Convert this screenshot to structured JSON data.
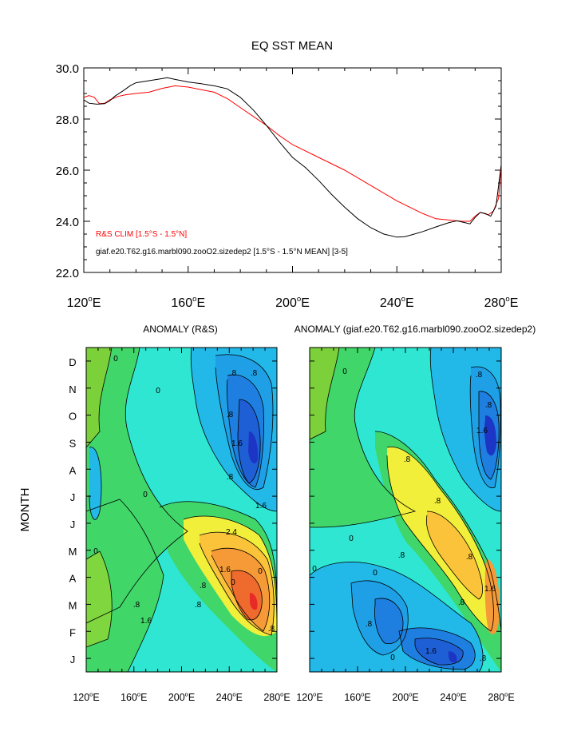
{
  "chart_data": [
    {
      "type": "line",
      "title": "EQ SST MEAN",
      "xlabel": "",
      "ylabel": "",
      "xlim": [
        120,
        280
      ],
      "ylim": [
        22.0,
        30.0
      ],
      "x_ticks": [
        "120°E",
        "160°E",
        "200°E",
        "240°E",
        "280°E"
      ],
      "y_ticks": [
        "22.0",
        "24.0",
        "26.0",
        "28.0",
        "30.0"
      ],
      "legend_placement": "bottom-left",
      "series": [
        {
          "name": "R&S CLIM [1.5°S - 1.5°N]",
          "color": "#ff0000",
          "x": [
            120,
            122,
            124,
            126,
            128,
            130,
            133,
            136,
            140,
            145,
            150,
            155,
            160,
            165,
            170,
            175,
            180,
            185,
            190,
            195,
            200,
            210,
            220,
            230,
            240,
            250,
            255,
            260,
            265,
            268,
            270,
            272,
            275,
            277,
            279,
            280
          ],
          "y": [
            28.85,
            28.92,
            28.85,
            28.6,
            28.62,
            28.75,
            28.88,
            28.95,
            29.0,
            29.05,
            29.2,
            29.3,
            29.25,
            29.15,
            29.05,
            28.8,
            28.45,
            28.1,
            27.75,
            27.35,
            27.0,
            26.5,
            26.0,
            25.4,
            24.8,
            24.3,
            24.1,
            24.05,
            24.0,
            24.0,
            24.2,
            24.35,
            24.25,
            24.4,
            24.9,
            26.2
          ]
        },
        {
          "name": "giaf.e20.T62.g16.marbl090.zooO2.sizedep2 [1.5°S - 1.5°N MEAN] [3-5]",
          "color": "#000000",
          "x": [
            120,
            122,
            125,
            128,
            130,
            132,
            135,
            138,
            140,
            145,
            150,
            152,
            155,
            160,
            165,
            170,
            175,
            180,
            185,
            190,
            195,
            200,
            205,
            210,
            215,
            220,
            225,
            230,
            235,
            240,
            243,
            246,
            250,
            255,
            260,
            263,
            266,
            268,
            270,
            272,
            274,
            276,
            278,
            280
          ],
          "y": [
            28.75,
            28.62,
            28.58,
            28.6,
            28.72,
            28.9,
            29.1,
            29.32,
            29.42,
            29.5,
            29.58,
            29.62,
            29.55,
            29.45,
            29.38,
            29.3,
            29.18,
            28.85,
            28.35,
            27.75,
            27.1,
            26.5,
            26.1,
            25.6,
            25.05,
            24.55,
            24.1,
            23.75,
            23.5,
            23.38,
            23.4,
            23.48,
            23.6,
            23.78,
            23.95,
            24.02,
            23.95,
            23.9,
            24.15,
            24.35,
            24.3,
            24.2,
            24.6,
            26.2
          ]
        }
      ]
    },
    {
      "type": "heatmap",
      "title": "ANOMALY (R&S)",
      "ylabel": "MONTH",
      "x_ticks": [
        "120°E",
        "160°E",
        "200°E",
        "240°E",
        "280°E"
      ],
      "y_ticks": [
        "J",
        "F",
        "M",
        "A",
        "M",
        "J",
        "J",
        "A",
        "S",
        "O",
        "N",
        "D"
      ],
      "contour_labels": [
        ".8",
        ".8",
        "0",
        "0",
        ".8",
        "1.6",
        ".8",
        "1.6",
        "2.4",
        "1.6",
        "0",
        "0",
        "0",
        "0",
        ".8",
        "1.6",
        ".8",
        ".8",
        ".8"
      ]
    },
    {
      "type": "heatmap",
      "title": "ANOMALY (giaf.e20.T62.g16.marbl090.zooO2.sizedep2)",
      "x_ticks": [
        "120°E",
        "160°E",
        "200°E",
        "240°E",
        "280°E"
      ],
      "y_ticks": [
        "J",
        "F",
        "M",
        "A",
        "M",
        "J",
        "J",
        "A",
        "S",
        "O",
        "N",
        "D"
      ],
      "contour_labels": [
        ".8",
        "1.6",
        ".8",
        ".8",
        ".8",
        "0",
        "0",
        ".8",
        "1.6",
        "0",
        "0",
        "0",
        ".8",
        "1.6",
        ".8",
        ".8",
        ".8"
      ]
    }
  ]
}
